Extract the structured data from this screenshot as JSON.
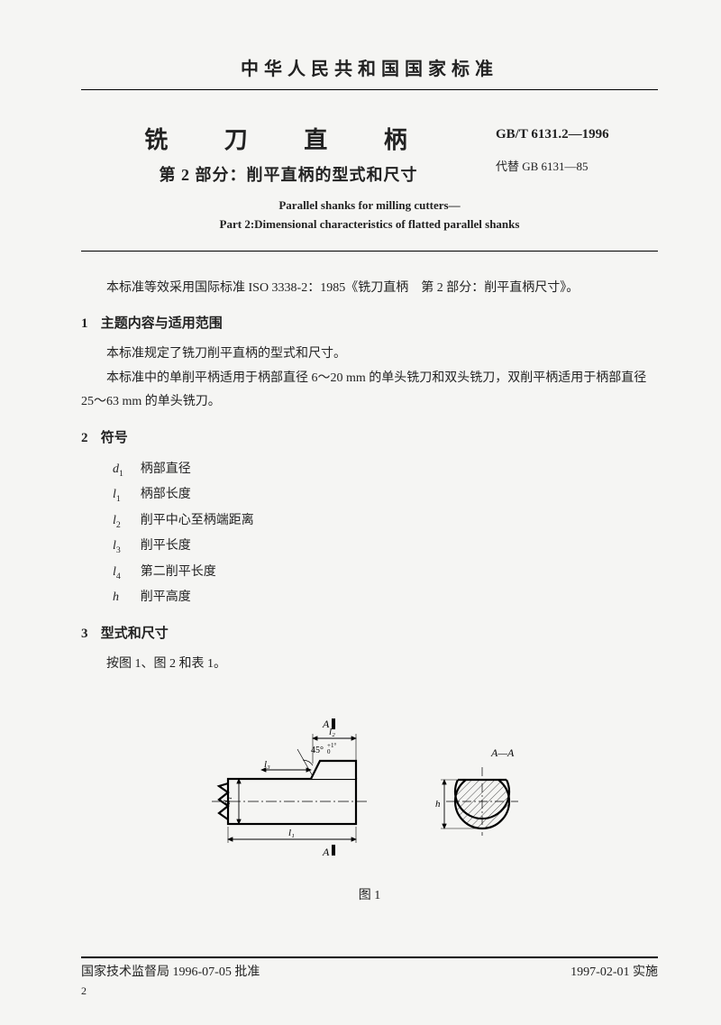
{
  "header": {
    "national_title": "中华人民共和国国家标准"
  },
  "title": {
    "main": "铣 刀 直 柄",
    "sub": "第 2 部分：削平直柄的型式和尺寸",
    "std_code": "GB/T 6131.2—1996",
    "replaces": "代替 GB 6131—85",
    "en_line1": "Parallel shanks for milling cutters—",
    "en_line2": "Part 2:Dimensional characteristics of flatted parallel shanks"
  },
  "intro": "本标准等效采用国际标准 ISO 3338-2：1985《铣刀直柄　第 2 部分：削平直柄尺寸》。",
  "section1": {
    "num": "1",
    "head": "主题内容与适用范围",
    "p1": "本标准规定了铣刀削平直柄的型式和尺寸。",
    "p2": "本标准中的单削平柄适用于柄部直径 6～20 mm 的单头铣刀和双头铣刀，双削平柄适用于柄部直径 25～63 mm 的单头铣刀。"
  },
  "section2": {
    "num": "2",
    "head": "符号",
    "symbols": [
      {
        "sym": "d",
        "sub": "1",
        "desc": "柄部直径"
      },
      {
        "sym": "l",
        "sub": "1",
        "desc": "柄部长度"
      },
      {
        "sym": "l",
        "sub": "2",
        "desc": "削平中心至柄端距离"
      },
      {
        "sym": "l",
        "sub": "3",
        "desc": "削平长度"
      },
      {
        "sym": "l",
        "sub": "4",
        "desc": "第二削平长度"
      },
      {
        "sym": "h",
        "sub": "",
        "desc": "削平高度"
      }
    ]
  },
  "section3": {
    "num": "3",
    "head": "型式和尺寸",
    "p1": "按图 1、图 2 和表 1。"
  },
  "figure": {
    "caption": "图 1",
    "labels": {
      "A1": "A",
      "A2": "A",
      "section": "A—A",
      "angle": "45°",
      "tol": "+1°",
      "tol0": "0",
      "l1": "l₁",
      "l2": "l₂",
      "l3": "l₃",
      "d1": "d₁",
      "h": "h"
    },
    "style": {
      "stroke": "#000000",
      "thick": 2.2,
      "thin": 0.9,
      "hatch": "#555555"
    }
  },
  "footer": {
    "left": "国家技术监督局 1996-07-05 批准",
    "right": "1997-02-01 实施",
    "page": "2"
  }
}
